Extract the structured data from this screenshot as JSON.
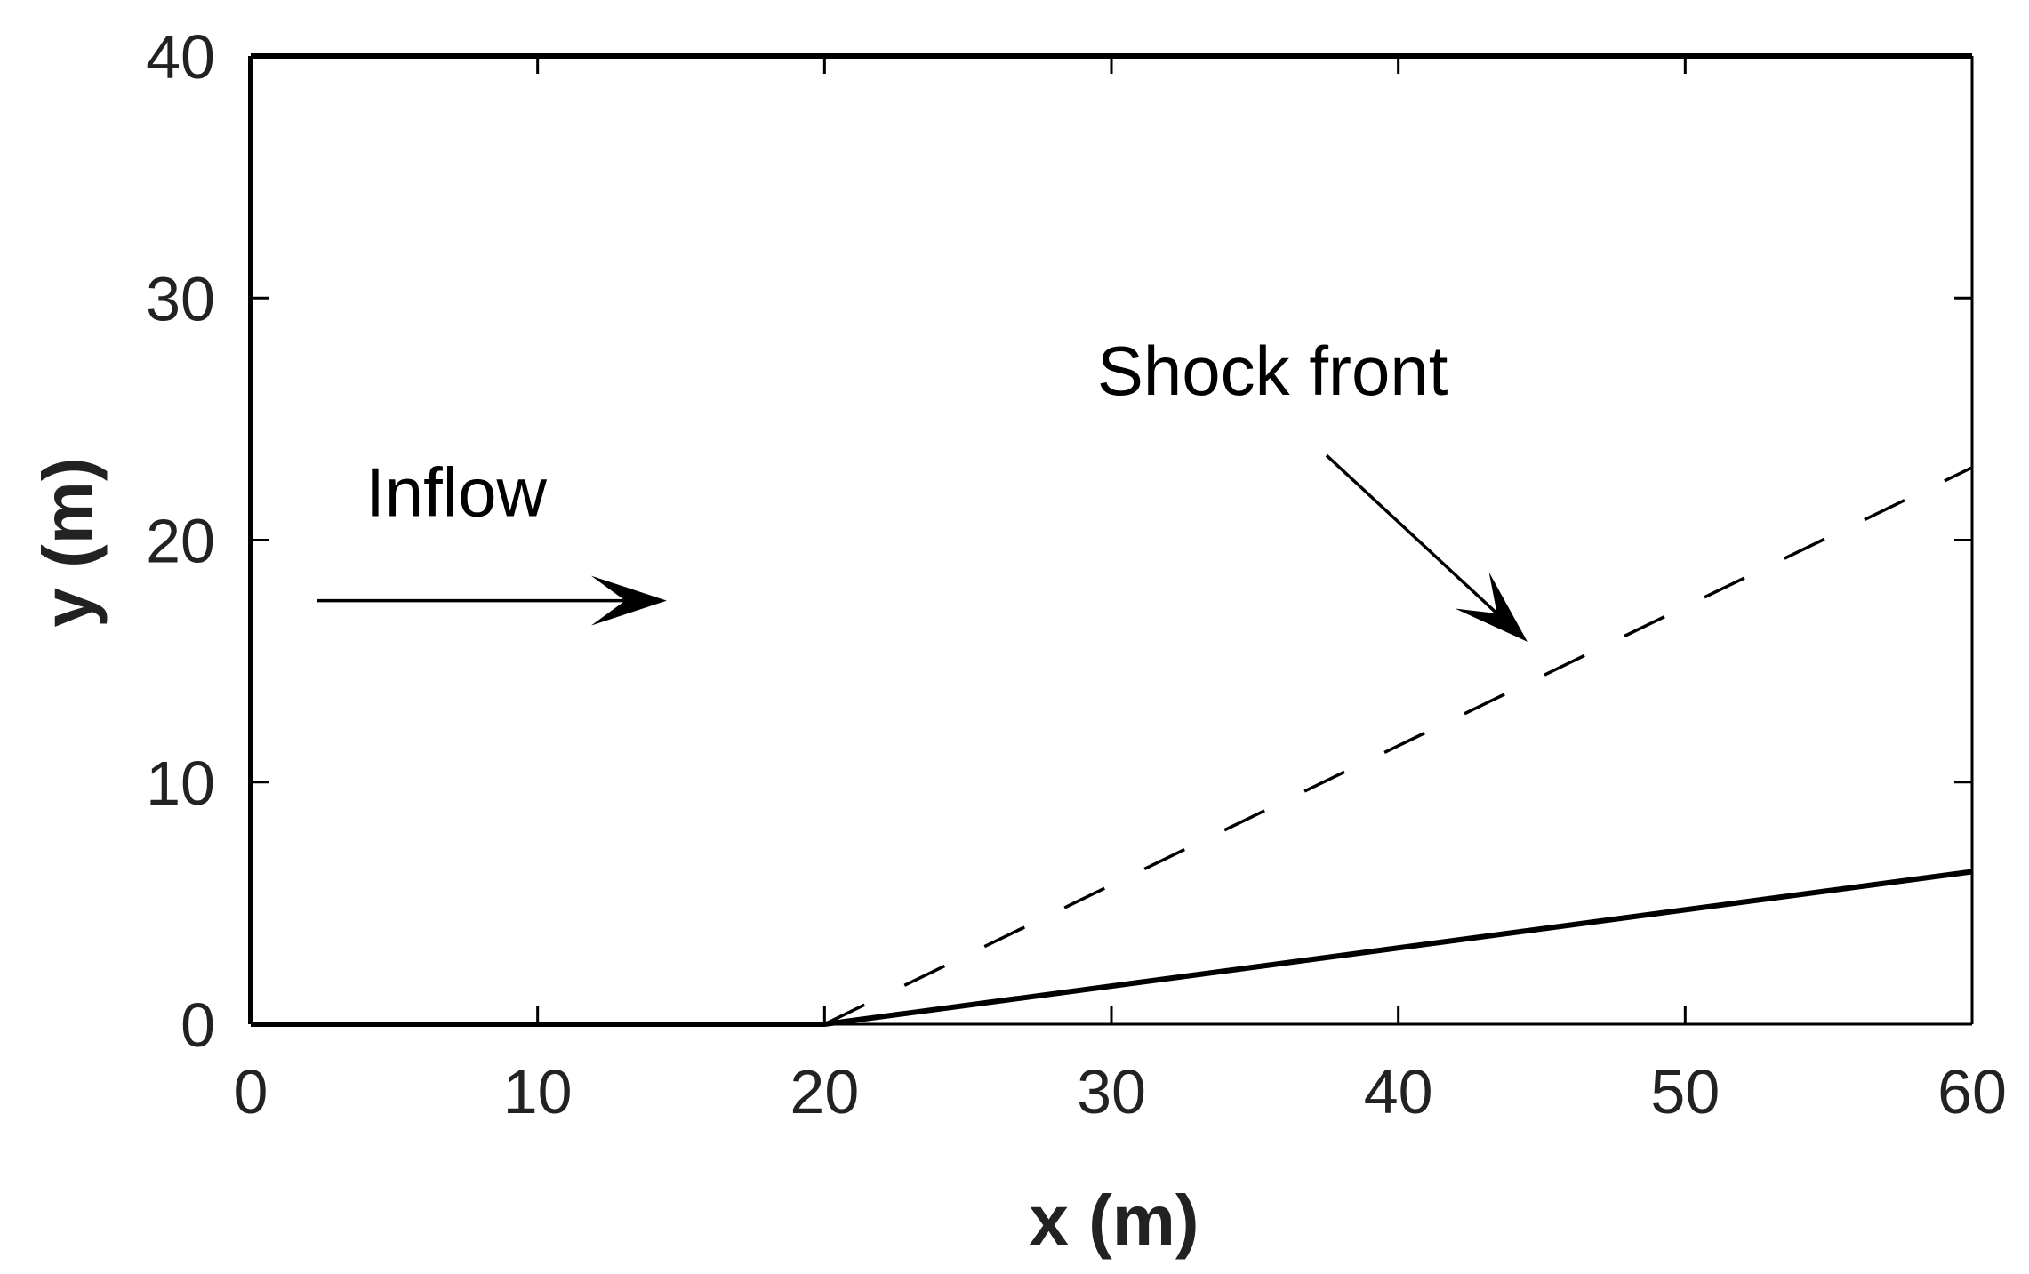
{
  "chart_data": {
    "type": "line",
    "title": "",
    "xlabel": "x (m)",
    "ylabel": "y (m)",
    "xlim": [
      0,
      60
    ],
    "ylim": [
      0,
      40
    ],
    "xticks": [
      "0",
      "10",
      "20",
      "30",
      "40",
      "50",
      "60"
    ],
    "yticks": [
      "0",
      "10",
      "20",
      "30",
      "40"
    ],
    "grid": false,
    "series": [
      {
        "style": "solid",
        "x": [
          0,
          20,
          60
        ],
        "y": [
          0,
          0,
          6.3
        ]
      },
      {
        "style": "dashed",
        "x": [
          20,
          60
        ],
        "y": [
          0,
          23
        ]
      }
    ],
    "annotations": [
      {
        "text": "Inflow",
        "at": [
          4,
          21
        ],
        "arrow": {
          "from": [
            2.3,
            17.5
          ],
          "to": [
            14.5,
            17.5
          ]
        }
      },
      {
        "text": "Shock front",
        "at": [
          29.5,
          26
        ],
        "arrow": {
          "from": [
            37.5,
            23.5
          ],
          "to": [
            44.5,
            15.8
          ]
        }
      }
    ],
    "colors": {
      "line": "#000000",
      "text": "#222222"
    }
  }
}
